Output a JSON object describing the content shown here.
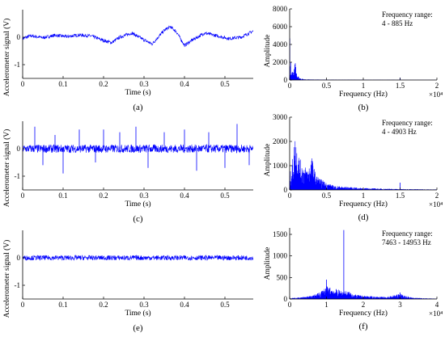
{
  "chart_data": [
    {
      "id": "a",
      "type": "line",
      "panel_label": "(a)",
      "xlabel": "Time (s)",
      "ylabel": "Accelerometer signal (V)",
      "xlim": [
        0,
        0.57
      ],
      "ylim": [
        -1.5,
        1.0
      ],
      "xticks": [
        0,
        0.1,
        0.2,
        0.3,
        0.4,
        0.5
      ],
      "xtick_labels": [
        "0",
        "0.1",
        "0.2",
        "0.3",
        "0.4",
        "0.5"
      ],
      "yticks": [
        -1,
        0
      ],
      "ytick_labels": [
        "-1",
        "0"
      ],
      "series": [
        {
          "color": "#0000ff",
          "x": [
            0,
            0.02,
            0.05,
            0.08,
            0.11,
            0.14,
            0.17,
            0.2,
            0.22,
            0.24,
            0.27,
            0.3,
            0.32,
            0.35,
            0.365,
            0.38,
            0.4,
            0.42,
            0.45,
            0.48,
            0.51,
            0.54,
            0.57
          ],
          "y": [
            -0.05,
            0.05,
            -0.02,
            0.07,
            0.02,
            0.08,
            0.04,
            -0.12,
            -0.2,
            0.0,
            0.15,
            -0.1,
            -0.25,
            0.25,
            0.38,
            0.2,
            -0.3,
            -0.1,
            0.15,
            0.05,
            -0.05,
            0.0,
            0.22
          ]
        }
      ],
      "noise_amplitude": 0.06
    },
    {
      "id": "b",
      "type": "line",
      "panel_label": "(b)",
      "xlabel": "Frequency (Hz)",
      "ylabel": "Amplitude",
      "x_multiplier": "×10⁴",
      "xlim": [
        0,
        2
      ],
      "ylim": [
        0,
        8000
      ],
      "xticks": [
        0,
        0.5,
        1,
        1.5,
        2
      ],
      "xtick_labels": [
        "0",
        "0.5",
        "1",
        "1.5",
        "2"
      ],
      "yticks": [
        0,
        2000,
        4000,
        6000,
        8000
      ],
      "ytick_labels": [
        "0",
        "2000",
        "4000",
        "6000",
        "8000"
      ],
      "annotation": {
        "line1": "Frequency range:",
        "line2": "4 - 885 Hz"
      },
      "series": [
        {
          "color": "#0000ff",
          "x": [
            0,
            0.005,
            0.01,
            0.02,
            0.03,
            0.05,
            0.07,
            0.09,
            0.1,
            0.15,
            0.2,
            0.5,
            1,
            1.5,
            2
          ],
          "y": [
            7800,
            3500,
            2200,
            1800,
            1200,
            900,
            2600,
            1000,
            500,
            200,
            80,
            40,
            30,
            20,
            10
          ]
        }
      ],
      "spikes": [
        {
          "x": 1.5,
          "y": 250
        }
      ]
    },
    {
      "id": "c",
      "type": "line",
      "panel_label": "(c)",
      "xlabel": "Time (s)",
      "ylabel": "Accelerometer signal (V)",
      "xlim": [
        0,
        0.57
      ],
      "ylim": [
        -1.5,
        1.0
      ],
      "xticks": [
        0,
        0.1,
        0.2,
        0.3,
        0.4,
        0.5
      ],
      "xtick_labels": [
        "0",
        "0.1",
        "0.2",
        "0.3",
        "0.4",
        "0.5"
      ],
      "yticks": [
        -1,
        0
      ],
      "ytick_labels": [
        "-1",
        "0"
      ],
      "series": [
        {
          "color": "#0000ff",
          "x": [
            0,
            0.57
          ],
          "y": [
            0,
            0
          ]
        }
      ],
      "noise_amplitude": 0.15,
      "spikes": [
        {
          "x": 0.03,
          "y": 0.8
        },
        {
          "x": 0.05,
          "y": -0.6
        },
        {
          "x": 0.08,
          "y": 0.5
        },
        {
          "x": 0.1,
          "y": -0.9
        },
        {
          "x": 0.14,
          "y": 0.7
        },
        {
          "x": 0.18,
          "y": -0.5
        },
        {
          "x": 0.2,
          "y": 0.7
        },
        {
          "x": 0.24,
          "y": 0.6
        },
        {
          "x": 0.28,
          "y": 0.8
        },
        {
          "x": 0.31,
          "y": -0.7
        },
        {
          "x": 0.35,
          "y": 0.6
        },
        {
          "x": 0.4,
          "y": 0.7
        },
        {
          "x": 0.43,
          "y": -0.8
        },
        {
          "x": 0.46,
          "y": 0.6
        },
        {
          "x": 0.5,
          "y": -0.7
        },
        {
          "x": 0.53,
          "y": 0.9
        },
        {
          "x": 0.56,
          "y": -0.6
        }
      ]
    },
    {
      "id": "d",
      "type": "line",
      "panel_label": "(d)",
      "xlabel": "Frequency (Hz)",
      "ylabel": "Amplitude",
      "x_multiplier": "×10⁴",
      "xlim": [
        0,
        2
      ],
      "ylim": [
        0,
        3000
      ],
      "xticks": [
        0,
        0.5,
        1,
        1.5,
        2
      ],
      "xtick_labels": [
        "0",
        "0.5",
        "1",
        "1.5",
        "2"
      ],
      "yticks": [
        0,
        1000,
        2000,
        3000
      ],
      "ytick_labels": [
        "0",
        "1000",
        "2000",
        "3000"
      ],
      "annotation": {
        "line1": "Frequency range:",
        "line2": "4 - 4903 Hz"
      },
      "series": [
        {
          "color": "#0000ff",
          "x": [
            0,
            0.02,
            0.05,
            0.08,
            0.1,
            0.15,
            0.2,
            0.25,
            0.3,
            0.35,
            0.4,
            0.5,
            0.6,
            0.8,
            1,
            1.2,
            1.5,
            2
          ],
          "y": [
            600,
            900,
            1500,
            2500,
            1800,
            1200,
            1000,
            900,
            1400,
            700,
            500,
            300,
            180,
            120,
            80,
            60,
            40,
            20
          ]
        }
      ],
      "spikes": [
        {
          "x": 1.5,
          "y": 300
        }
      ]
    },
    {
      "id": "e",
      "type": "line",
      "panel_label": "(e)",
      "xlabel": "Time (s)",
      "ylabel": "Accelerometer signal (V)",
      "xlim": [
        0,
        0.57
      ],
      "ylim": [
        -1.5,
        1.0
      ],
      "xticks": [
        0,
        0.1,
        0.2,
        0.3,
        0.4,
        0.5
      ],
      "xtick_labels": [
        "0",
        "0.1",
        "0.2",
        "0.3",
        "0.4",
        "0.5"
      ],
      "yticks": [
        -1,
        0
      ],
      "ytick_labels": [
        "-1",
        "0"
      ],
      "series": [
        {
          "color": "#0000ff",
          "x": [
            0,
            0.57
          ],
          "y": [
            0,
            0
          ]
        }
      ],
      "noise_amplitude": 0.09
    },
    {
      "id": "f",
      "type": "line",
      "panel_label": "(f)",
      "xlabel": "Frequency (Hz)",
      "ylabel": "Amplitude",
      "x_multiplier": "×10⁴",
      "xlim": [
        0,
        4
      ],
      "ylim": [
        0,
        1650
      ],
      "xticks": [
        0,
        1,
        2,
        3,
        4
      ],
      "xtick_labels": [
        "0",
        "1",
        "2",
        "3",
        "4"
      ],
      "yticks": [
        0,
        500,
        1000,
        1500
      ],
      "ytick_labels": [
        "0",
        "500",
        "1000",
        "1500"
      ],
      "annotation": {
        "line1": "Frequency range:",
        "line2": "7463 - 14953 Hz"
      },
      "series": [
        {
          "color": "#0000ff",
          "x": [
            0,
            0.3,
            0.6,
            0.8,
            1.0,
            1.2,
            1.4,
            1.6,
            1.8,
            2.0,
            2.3,
            2.6,
            3.0,
            3.3,
            3.6,
            4.0
          ],
          "y": [
            20,
            40,
            80,
            150,
            300,
            250,
            200,
            180,
            100,
            80,
            60,
            50,
            120,
            40,
            20,
            10
          ]
        }
      ],
      "spikes": [
        {
          "x": 1.0,
          "y": 450
        },
        {
          "x": 1.47,
          "y": 1600
        },
        {
          "x": 3.0,
          "y": 150
        }
      ]
    }
  ]
}
